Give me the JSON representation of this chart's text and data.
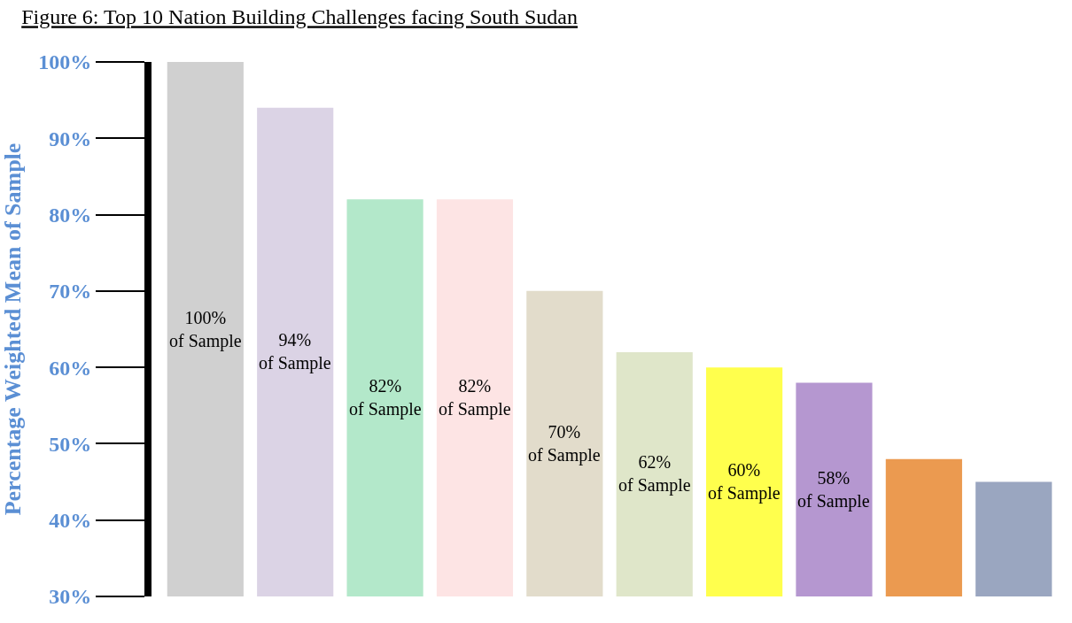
{
  "chart_data": {
    "type": "bar",
    "title": "Figure 6: Top 10 Nation Building Challenges facing South Sudan",
    "ylabel": "Percentage Weighted Mean of Sample",
    "categories": [
      null,
      null,
      null,
      null,
      null,
      null,
      null,
      null,
      null,
      null
    ],
    "values": [
      100,
      94,
      82,
      82,
      70,
      62,
      60,
      58,
      48,
      45
    ],
    "colors": [
      "#d0d0d0",
      "#dbd3e5",
      "#b3e8ca",
      "#fde4e4",
      "#e2dccb",
      "#dfe6c9",
      "#ffff4d",
      "#b597d0",
      "#eb9a50",
      "#9aa6c0"
    ],
    "value_labels": [
      "100% of Sample",
      "94% of Sample",
      "82% of Sample",
      "82% of Sample",
      "70% of Sample",
      "62% of Sample",
      "60% of Sample",
      "58% of Sample",
      null,
      null
    ],
    "ylim": [
      30,
      100
    ],
    "yticks": [
      {
        "value": 30,
        "label": "30%"
      },
      {
        "value": 40,
        "label": "40%"
      },
      {
        "value": 50,
        "label": "50%"
      },
      {
        "value": 60,
        "label": "60%"
      },
      {
        "value": 70,
        "label": "70%"
      },
      {
        "value": 80,
        "label": "80%"
      },
      {
        "value": 90,
        "label": "90%"
      },
      {
        "value": 100,
        "label": "100%"
      }
    ],
    "tick_labels": "y"
  }
}
